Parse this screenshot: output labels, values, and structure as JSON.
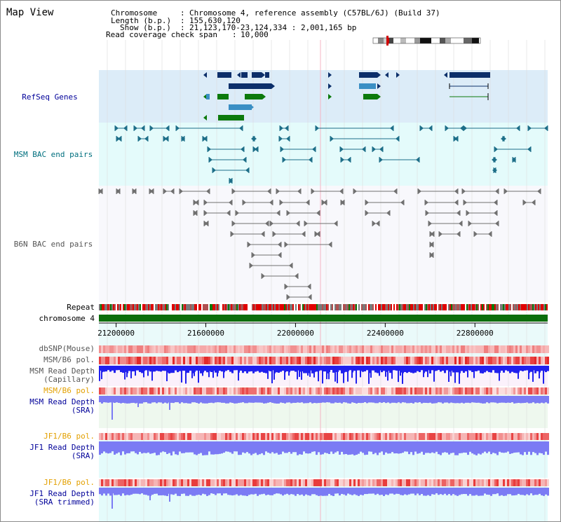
{
  "header": {
    "title": "Map View",
    "chromosome_label": "Chromosome",
    "chromosome_value": "Chromosome 4, reference assembly (C57BL/6J) (Build 37)",
    "length_label": "Length (b.p.)",
    "length_value": "155,630,120",
    "show_label": "Show (b.p.)",
    "show_value": "21,123,170-23,124,334 : 2,001,165 bp",
    "coverage_label": "Read coverage check span",
    "coverage_value": "10,000"
  },
  "tracks": {
    "refseq": "RefSeq Genes",
    "msm_bac": "MSM BAC end pairs",
    "b6n_bac": "B6N BAC end pairs",
    "repeat": "Repeat",
    "chromosome": "chromosome 4",
    "dbsnp": "dbSNP(Mouse)",
    "msm_b6_pol": "MSM/B6 pol.",
    "msm_depth_cap_1": "MSM Read Depth",
    "msm_depth_cap_2": "(Capillary)",
    "msm_b6_pol_sra": "MSM/B6 pol.",
    "msm_depth_sra_1": "MSM Read Depth",
    "msm_depth_sra_2": "(SRA)",
    "jf1_b6_pol": "JF1/B6 pol.",
    "jf1_depth_sra_1": "JF1 Read Depth",
    "jf1_depth_sra_2": "(SRA)",
    "jf1_b6_pol_trim": "JF1/B6 pol.",
    "jf1_depth_trim_1": "JF1 Read Depth",
    "jf1_depth_trim_2": "(SRA trimmed)"
  },
  "axis": {
    "ticks": [
      "21200000",
      "21600000",
      "22000000",
      "22400000",
      "22800000"
    ],
    "tick_values": [
      21200000,
      21600000,
      22000000,
      22400000,
      22800000
    ],
    "range": [
      21123170,
      23124334
    ]
  },
  "colors": {
    "refseq_bg": "#dcecf8",
    "msm_bg": "#e4fbfb",
    "plot_bg": "#f8f8fc",
    "axis_bg": "#eafafa",
    "depth_bg": "#fbf1fb",
    "sra_bg": "#eef8ee",
    "gene_dark": "#0c2f6a",
    "gene_mid": "#3a8fc4",
    "gene_green": "#0c7a0c",
    "msm_pair": "#1d6e88",
    "b6n_pair": "#707070",
    "chrom_bar": "#0c6e0c",
    "depth_blue": "#2020ee",
    "sra_blue": "#7b7bf4",
    "label_blue": "#000099",
    "label_teal": "#006f7e",
    "label_gray": "#555555",
    "label_orange": "#e3a000"
  }
}
